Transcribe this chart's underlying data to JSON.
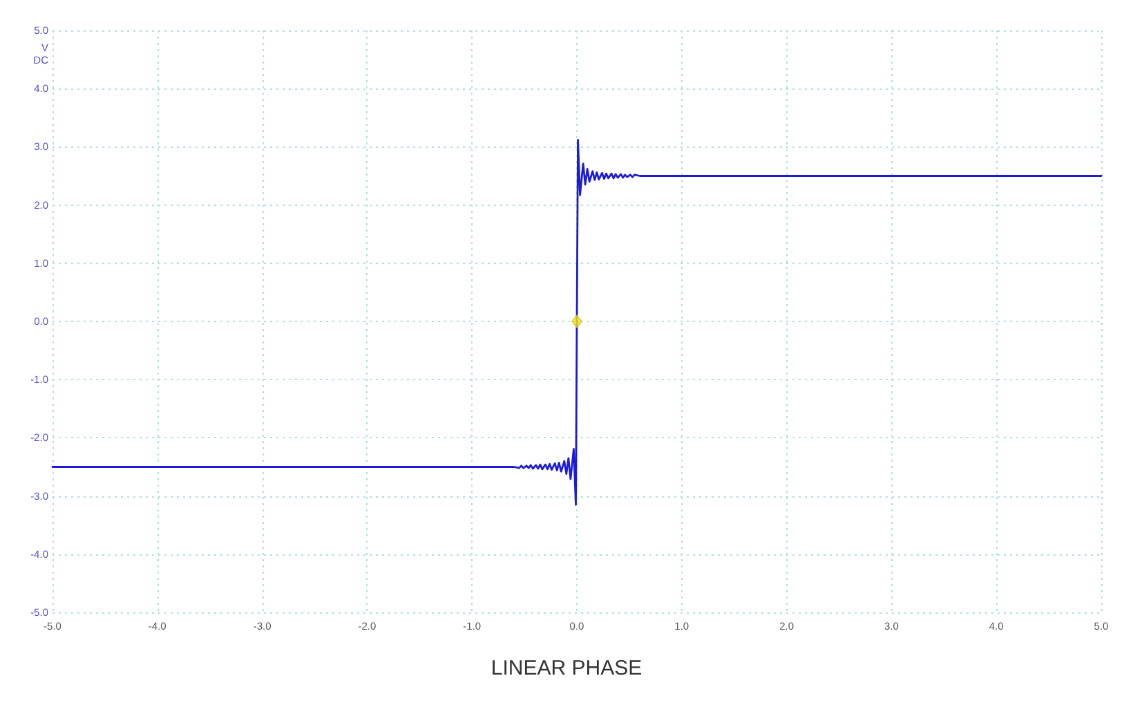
{
  "chart_data": {
    "type": "line",
    "title": "LINEAR PHASE",
    "ylabel": "V\nDC",
    "xlim": [
      -5,
      5
    ],
    "xticks": [
      {
        "value": -5,
        "label": "-5.0"
      },
      {
        "value": -4,
        "label": "-4.0"
      },
      {
        "value": -3,
        "label": "-3.0"
      },
      {
        "value": -2,
        "label": "-2.0"
      },
      {
        "value": -1,
        "label": "-1.0"
      },
      {
        "value": 0,
        "label": "0.0"
      },
      {
        "value": 1,
        "label": "1.0"
      },
      {
        "value": 2,
        "label": "2.0"
      },
      {
        "value": 3,
        "label": "3.0"
      },
      {
        "value": 4,
        "label": "4.0"
      },
      {
        "value": 5,
        "label": "5.0"
      }
    ],
    "ylim": [
      -5,
      5
    ],
    "yticks": [
      {
        "value": -5,
        "label": "-5.0"
      },
      {
        "value": -4,
        "label": "-4.0"
      },
      {
        "value": -3,
        "label": "-3.0"
      },
      {
        "value": -2,
        "label": "-2.0"
      },
      {
        "value": -1,
        "label": "-1.0"
      },
      {
        "value": 0,
        "label": "0.0"
      },
      {
        "value": 1,
        "label": "1.0"
      },
      {
        "value": 2,
        "label": "2.0"
      },
      {
        "value": 3,
        "label": "3.0"
      },
      {
        "value": 4,
        "label": "4.0"
      },
      {
        "value": 5,
        "label": "5.0"
      }
    ],
    "grid": true,
    "marker": "none",
    "series": [
      {
        "color": "#1c1cd8",
        "x": [
          -5,
          -0.6,
          -0.55,
          -0.53,
          -0.51,
          -0.48,
          -0.46,
          -0.44,
          -0.42,
          -0.39,
          -0.37,
          -0.35,
          -0.33,
          -0.3,
          -0.28,
          -0.26,
          -0.24,
          -0.21,
          -0.19,
          -0.17,
          -0.15,
          -0.12,
          -0.1,
          -0.08,
          -0.06,
          -0.03,
          -0.01,
          0,
          0.01,
          0.03,
          0.06,
          0.08,
          0.1,
          0.12,
          0.15,
          0.17,
          0.19,
          0.21,
          0.24,
          0.26,
          0.28,
          0.3,
          0.33,
          0.35,
          0.37,
          0.39,
          0.42,
          0.44,
          0.46,
          0.48,
          0.51,
          0.53,
          0.55,
          0.6,
          5
        ],
        "values": [
          -2.5,
          -2.5,
          -2.52,
          -2.48,
          -2.52,
          -2.48,
          -2.52,
          -2.47,
          -2.53,
          -2.47,
          -2.53,
          -2.46,
          -2.54,
          -2.46,
          -2.54,
          -2.45,
          -2.55,
          -2.44,
          -2.56,
          -2.43,
          -2.58,
          -2.4,
          -2.62,
          -2.35,
          -2.71,
          -2.19,
          -3.15,
          0,
          3.12,
          2.17,
          2.71,
          2.35,
          2.62,
          2.4,
          2.58,
          2.43,
          2.56,
          2.44,
          2.55,
          2.45,
          2.54,
          2.46,
          2.54,
          2.46,
          2.53,
          2.47,
          2.53,
          2.47,
          2.52,
          2.48,
          2.52,
          2.48,
          2.52,
          2.5,
          2.5
        ]
      },
      {
        "type": "scatter",
        "marker": "diamond",
        "color": "#f2e31c",
        "x": [
          0
        ],
        "values": [
          0
        ]
      }
    ]
  }
}
